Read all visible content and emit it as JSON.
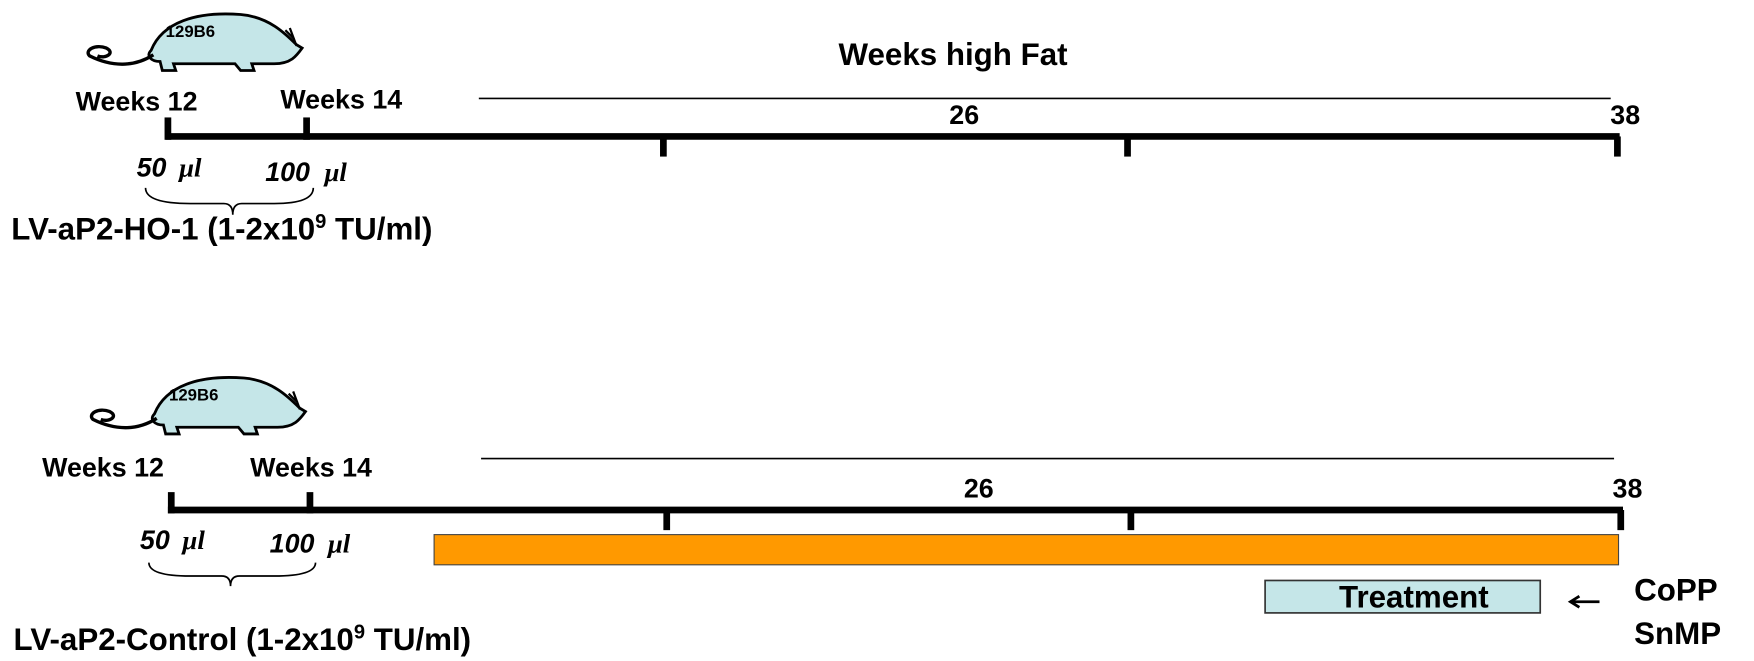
{
  "title": "Weeks high Fat",
  "panels": [
    {
      "strain": "129B6",
      "start": "Weeks 12",
      "second": "Weeks 14",
      "mid": "26",
      "end": "38",
      "dose1": "50",
      "dose1_unit": "μl",
      "dose2": "100",
      "dose2_unit": "μl",
      "vector": {
        "name": "LV-aP2-HO-1 (1-2x10",
        "exponent": "9",
        "unit": "TU/ml)"
      }
    },
    {
      "strain": "129B6",
      "start": "Weeks 12",
      "second": "Weeks 14",
      "mid": "26",
      "end": "38",
      "dose1": "50",
      "dose1_unit": "μl",
      "dose2": "100",
      "dose2_unit": "μl",
      "vector": {
        "name": "LV-aP2-Control (1-2x10",
        "exponent": "9",
        "unit": "TU/ml)"
      },
      "treatment": "Treatment",
      "drugs": [
        "CoPP",
        "SnMP"
      ]
    }
  ]
}
